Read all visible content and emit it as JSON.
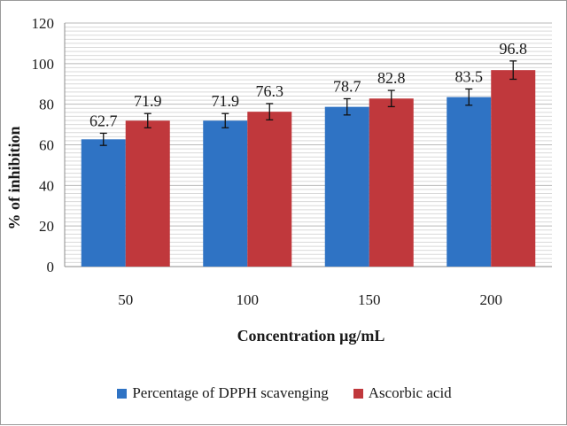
{
  "chart_data": {
    "type": "bar",
    "title": "",
    "xlabel": "Concentration  µg/mL",
    "ylabel": "% of inhibition",
    "categories": [
      "50",
      "100",
      "150",
      "200"
    ],
    "ylim": [
      0,
      120
    ],
    "yticks": [
      0,
      20,
      40,
      60,
      80,
      100,
      120
    ],
    "ytick_labels": [
      "0",
      "20",
      "40",
      "60",
      "80",
      "100",
      "120"
    ],
    "grid": true,
    "legend_position": "bottom",
    "series": [
      {
        "name": "Percentage of DPPH scavenging",
        "color": "#2f73c4",
        "values": [
          62.7,
          71.9,
          78.7,
          83.5
        ],
        "value_labels": [
          "62.7",
          "71.9",
          "78.7",
          "83.5"
        ],
        "errors": [
          3,
          3.5,
          4,
          4
        ]
      },
      {
        "name": "Ascorbic acid",
        "color": "#c0383c",
        "values": [
          71.9,
          76.3,
          82.8,
          96.8
        ],
        "value_labels": [
          "71.9",
          "76.3",
          "82.8",
          "96.8"
        ],
        "errors": [
          3.5,
          4,
          4,
          4.5
        ]
      }
    ]
  }
}
